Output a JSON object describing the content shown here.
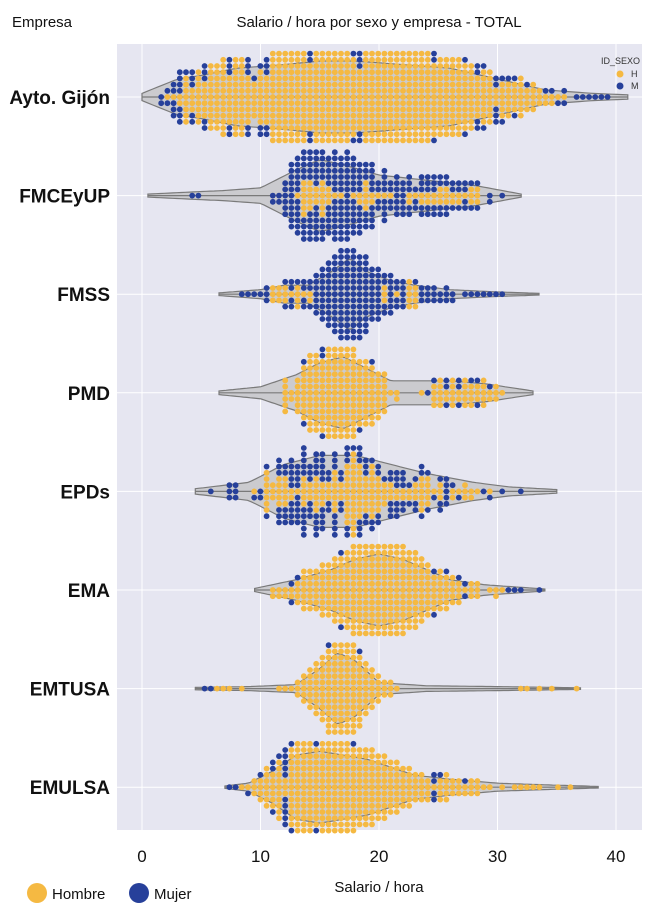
{
  "chart_data": {
    "type": "violin-swarm",
    "title": "Salario / hora por sexo y empresa - TOTAL",
    "ylabel": "Empresa",
    "xlabel": "Salario / hora",
    "xlim": [
      -2,
      43
    ],
    "xticks": [
      0,
      10,
      20,
      30,
      40
    ],
    "grid": true,
    "categories": [
      "Ayto. Gijón",
      "FMCEyUP",
      "FMSS",
      "PMD",
      "EPDs",
      "EMA",
      "EMTUSA",
      "EMULSA"
    ],
    "inner_legend": {
      "title": "ID_SEXO",
      "entries": [
        "H",
        "M"
      ],
      "placement": "top-right"
    },
    "bottom_legend": {
      "entries": [
        "Hombre",
        "Mujer"
      ],
      "placement": "bottom-left"
    },
    "colors": {
      "H": "#F5B942",
      "M": "#27409A",
      "plot_bg": "#E6E6F1",
      "violin_fill": "#CBCBCF",
      "violin_edge": "#7A7A7A"
    },
    "groups": [
      {
        "name": "Ayto. Gijón",
        "range": [
          0,
          41
        ],
        "profile": [
          [
            0,
            1
          ],
          [
            3,
            5
          ],
          [
            5,
            6
          ],
          [
            8,
            8
          ],
          [
            12,
            9
          ],
          [
            15,
            10
          ],
          [
            18,
            10
          ],
          [
            22,
            9
          ],
          [
            26,
            8
          ],
          [
            30,
            5
          ],
          [
            34,
            2
          ],
          [
            38,
            1
          ],
          [
            41,
            0.6
          ]
        ],
        "h_centers": [
          [
            5,
            4
          ],
          [
            8,
            7
          ],
          [
            12,
            9
          ],
          [
            16,
            10
          ],
          [
            20,
            10
          ],
          [
            23,
            9
          ],
          [
            26,
            7
          ],
          [
            29,
            4
          ],
          [
            32,
            2
          ],
          [
            34,
            1
          ]
        ],
        "m_centers": [
          [
            4,
            3
          ],
          [
            8,
            5
          ],
          [
            12,
            8
          ],
          [
            15,
            9
          ],
          [
            18,
            9
          ],
          [
            22,
            7
          ],
          [
            25,
            5
          ],
          [
            28,
            3
          ],
          [
            31,
            2
          ],
          [
            34,
            1
          ],
          [
            36,
            0.6
          ],
          [
            38,
            0.4
          ]
        ]
      },
      {
        "name": "FMCEyUP",
        "range": [
          0.5,
          32
        ],
        "profile": [
          [
            0.5,
            0.3
          ],
          [
            7,
            1
          ],
          [
            10,
            1.5
          ],
          [
            13,
            5
          ],
          [
            15,
            7
          ],
          [
            17,
            6
          ],
          [
            20,
            4
          ],
          [
            24,
            3
          ],
          [
            26,
            2.5
          ],
          [
            28,
            2
          ],
          [
            32,
            0.3
          ]
        ],
        "h_centers": [
          [
            15,
            2
          ],
          [
            19,
            1
          ],
          [
            24,
            1
          ],
          [
            27,
            1
          ]
        ],
        "m_centers": [
          [
            4,
            0.3
          ],
          [
            12,
            1
          ],
          [
            14,
            5
          ],
          [
            16,
            6
          ],
          [
            18,
            4
          ],
          [
            20,
            3
          ],
          [
            23,
            2
          ],
          [
            25,
            1.5
          ],
          [
            27,
            1.5
          ],
          [
            28,
            1
          ]
        ]
      },
      {
        "name": "FMSS",
        "range": [
          6.5,
          33.5
        ],
        "profile": [
          [
            6.5,
            0.3
          ],
          [
            10,
            1
          ],
          [
            12,
            2
          ],
          [
            14,
            2
          ],
          [
            16,
            5
          ],
          [
            17.5,
            8
          ],
          [
            19,
            5
          ],
          [
            21,
            3
          ],
          [
            23,
            2
          ],
          [
            26,
            1
          ],
          [
            30,
            0.5
          ],
          [
            33.5,
            0.2
          ]
        ],
        "h_centers": [
          [
            12.5,
            1.5
          ],
          [
            22,
            1
          ]
        ],
        "m_centers": [
          [
            10,
            1
          ],
          [
            12,
            2
          ],
          [
            14,
            3
          ],
          [
            16,
            5
          ],
          [
            17.5,
            9
          ],
          [
            19,
            4
          ],
          [
            21,
            3
          ],
          [
            24,
            2
          ],
          [
            27,
            1
          ],
          [
            30,
            0.3
          ]
        ]
      },
      {
        "name": "PMD",
        "range": [
          6.5,
          33
        ],
        "profile": [
          [
            6.5,
            0.3
          ],
          [
            10,
            1
          ],
          [
            13,
            3
          ],
          [
            15,
            5
          ],
          [
            17,
            6
          ],
          [
            19,
            4
          ],
          [
            21,
            2
          ],
          [
            23,
            2
          ],
          [
            26,
            2
          ],
          [
            29,
            1.5
          ],
          [
            33,
            0.3
          ]
        ],
        "h_centers": [
          [
            14,
            4
          ],
          [
            16,
            7
          ],
          [
            18,
            5
          ],
          [
            20,
            2
          ],
          [
            26,
            2
          ],
          [
            28,
            2
          ]
        ],
        "m_centers": [
          [
            15,
            2
          ],
          [
            18,
            1
          ],
          [
            26,
            1.5
          ],
          [
            28,
            1
          ]
        ]
      },
      {
        "name": "EPDs",
        "range": [
          4.5,
          35
        ],
        "profile": [
          [
            4.5,
            0.3
          ],
          [
            9,
            1
          ],
          [
            12,
            3
          ],
          [
            15,
            4
          ],
          [
            18,
            4
          ],
          [
            21,
            3
          ],
          [
            24,
            2
          ],
          [
            28,
            1
          ],
          [
            31,
            0.5
          ],
          [
            35,
            0.2
          ]
        ],
        "h_centers": [
          [
            12,
            2
          ],
          [
            15,
            2
          ],
          [
            18,
            3
          ],
          [
            20,
            2
          ],
          [
            23,
            1.5
          ],
          [
            27,
            1
          ]
        ],
        "m_centers": [
          [
            8,
            0.5
          ],
          [
            12,
            3
          ],
          [
            15,
            3
          ],
          [
            18,
            3
          ],
          [
            22,
            2
          ],
          [
            25,
            1
          ],
          [
            31,
            0.3
          ]
        ]
      },
      {
        "name": "EMA",
        "range": [
          9.5,
          34
        ],
        "profile": [
          [
            9.5,
            0.3
          ],
          [
            13,
            2
          ],
          [
            16,
            4
          ],
          [
            18,
            6
          ],
          [
            20,
            7
          ],
          [
            22,
            6
          ],
          [
            24,
            4
          ],
          [
            26,
            2
          ],
          [
            29,
            1
          ],
          [
            34,
            0.2
          ]
        ],
        "h_centers": [
          [
            13,
            2
          ],
          [
            16,
            5
          ],
          [
            18,
            7
          ],
          [
            20,
            8
          ],
          [
            22,
            7
          ],
          [
            24,
            4
          ],
          [
            26,
            2
          ],
          [
            29,
            1
          ]
        ],
        "m_centers": [
          [
            14,
            1
          ],
          [
            17,
            2
          ],
          [
            19,
            2
          ],
          [
            21,
            1.5
          ],
          [
            24,
            1.5
          ],
          [
            27,
            1
          ],
          [
            31,
            0.5
          ]
        ]
      },
      {
        "name": "EMTUSA",
        "range": [
          4.5,
          37
        ],
        "profile": [
          [
            4.5,
            0.3
          ],
          [
            9,
            0.5
          ],
          [
            13,
            1
          ],
          [
            15,
            5
          ],
          [
            16.5,
            9
          ],
          [
            18,
            7
          ],
          [
            20,
            1.5
          ],
          [
            24,
            0.7
          ],
          [
            30,
            0.5
          ],
          [
            37,
            0.2
          ]
        ],
        "h_centers": [
          [
            7,
            0.5
          ],
          [
            13,
            1.5
          ],
          [
            15,
            4
          ],
          [
            16.5,
            8
          ],
          [
            18,
            6
          ],
          [
            19.5,
            2
          ],
          [
            33,
            0.3
          ],
          [
            35,
            0.3
          ]
        ],
        "m_centers": [
          [
            6,
            0.5
          ],
          [
            13,
            1
          ],
          [
            16,
            4
          ],
          [
            17,
            5
          ],
          [
            18,
            3
          ]
        ]
      },
      {
        "name": "EMULSA",
        "range": [
          7,
          38.5
        ],
        "profile": [
          [
            7,
            0.3
          ],
          [
            9,
            1
          ],
          [
            11,
            4
          ],
          [
            13,
            8
          ],
          [
            15,
            9
          ],
          [
            17,
            8
          ],
          [
            19,
            7
          ],
          [
            21,
            5
          ],
          [
            23,
            3
          ],
          [
            26,
            2
          ],
          [
            30,
            1
          ],
          [
            35,
            0.5
          ],
          [
            38.5,
            0.2
          ]
        ],
        "h_centers": [
          [
            11,
            4
          ],
          [
            14,
            7
          ],
          [
            17,
            7
          ],
          [
            19,
            6
          ],
          [
            21,
            5
          ],
          [
            23,
            3
          ],
          [
            26,
            2
          ],
          [
            29,
            1
          ],
          [
            33,
            0.5
          ],
          [
            36,
            0.3
          ]
        ],
        "m_centers": [
          [
            10,
            3
          ],
          [
            12,
            8
          ],
          [
            14,
            6
          ],
          [
            17,
            5
          ],
          [
            19,
            4
          ],
          [
            22,
            2
          ],
          [
            25,
            1
          ]
        ]
      }
    ]
  }
}
